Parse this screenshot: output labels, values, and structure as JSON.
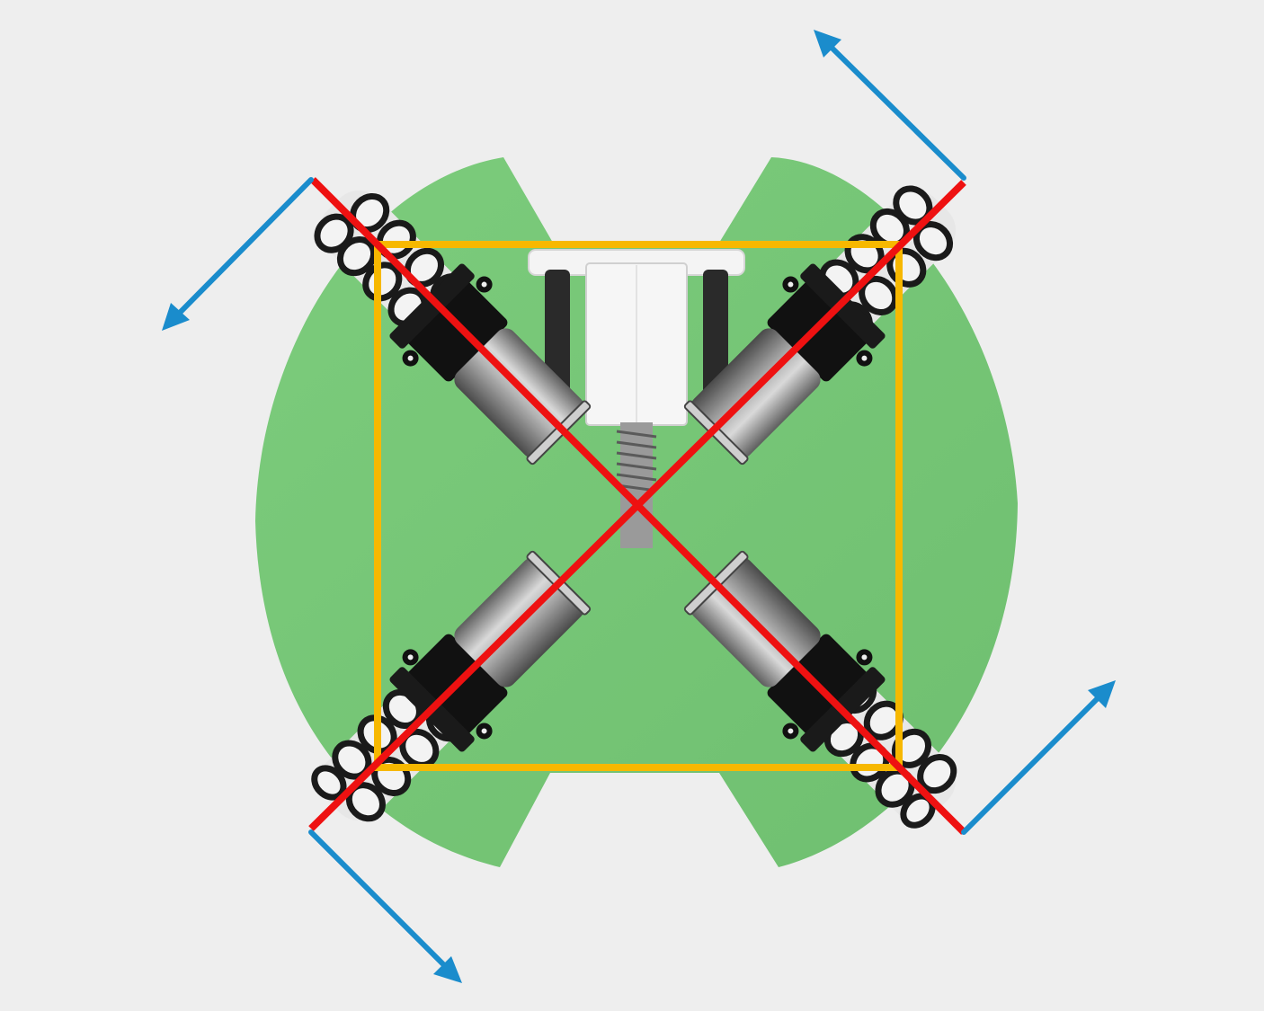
{
  "colors": {
    "background": "#eeeeee",
    "chassis": "#7dc97d",
    "chassis_edge": "#6fbf70",
    "frame_square": "#f7b800",
    "diagonals": "#ee1111",
    "force_arrows": "#1a8ccc",
    "motor_metal": "#a9a9a9",
    "bracket": "#111111",
    "roller_white": "#f2f2f2",
    "roller_black": "#1a1a1a",
    "center_block": "#f4f4f4"
  },
  "icons": {
    "wheel": "omni-wheel-icon",
    "motor": "dc-motor-icon",
    "arrow": "force-arrow-icon",
    "lead_screw": "lead-screw-icon"
  },
  "diagram": {
    "type": "omni-wheel robot base, top view",
    "wheels": [
      "front-left",
      "front-right",
      "rear-left",
      "rear-right"
    ],
    "force_arrows": [
      "front-left",
      "front-right",
      "rear-left",
      "rear-right"
    ]
  }
}
